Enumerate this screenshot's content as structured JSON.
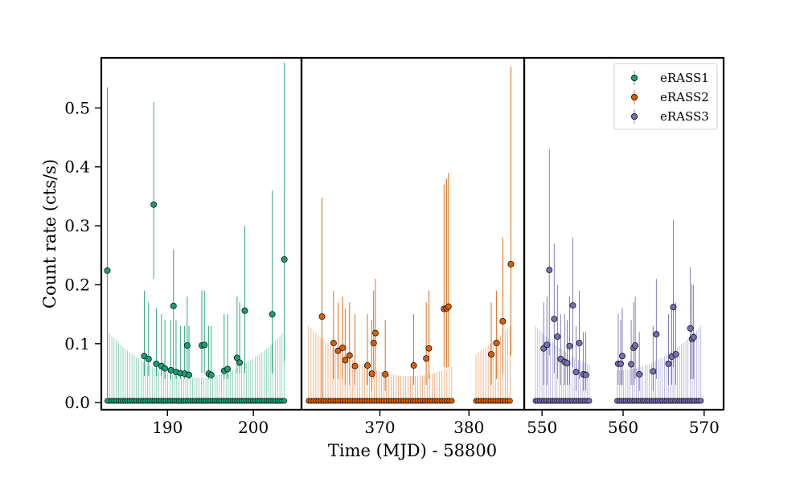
{
  "chart_data": {
    "type": "scatter",
    "ylabel": "Count rate (cts/s)",
    "xlabel": "Time (MJD) - 58800",
    "ylim": [
      -0.012,
      0.585
    ],
    "yticks": [
      "0.0",
      "0.1",
      "0.2",
      "0.3",
      "0.4",
      "0.5"
    ],
    "legend": {
      "placement": "top-right",
      "entries": [
        "eRASS1",
        "eRASS2",
        "eRASS3"
      ]
    },
    "panels": [
      {
        "name": "eRASS1",
        "color": "#1b9e77",
        "xlim": [
          182.3,
          205.6
        ],
        "xticks": [
          190,
          200
        ],
        "xtick_labels": [
          "190",
          "200"
        ],
        "points": [
          {
            "x": 183.0,
            "y": 0.224,
            "lo": 0.0,
            "hi": 0.535
          },
          {
            "x": 187.3,
            "y": 0.079,
            "lo": 0.045,
            "hi": 0.19
          },
          {
            "x": 187.8,
            "y": 0.074,
            "lo": 0.045,
            "hi": 0.17
          },
          {
            "x": 188.4,
            "y": 0.336,
            "lo": 0.21,
            "hi": 0.51
          },
          {
            "x": 188.7,
            "y": 0.066,
            "lo": 0.045,
            "hi": 0.16
          },
          {
            "x": 189.3,
            "y": 0.062,
            "lo": 0.045,
            "hi": 0.15
          },
          {
            "x": 189.7,
            "y": 0.058,
            "lo": 0.04,
            "hi": 0.14
          },
          {
            "x": 190.4,
            "y": 0.055,
            "lo": 0.04,
            "hi": 0.14
          },
          {
            "x": 190.7,
            "y": 0.164,
            "lo": 0.05,
            "hi": 0.26
          },
          {
            "x": 191.0,
            "y": 0.052,
            "lo": 0.04,
            "hi": 0.14
          },
          {
            "x": 191.5,
            "y": 0.05,
            "lo": 0.04,
            "hi": 0.13
          },
          {
            "x": 192.0,
            "y": 0.049,
            "lo": 0.04,
            "hi": 0.13
          },
          {
            "x": 192.3,
            "y": 0.097,
            "lo": 0.05,
            "hi": 0.18
          },
          {
            "x": 192.5,
            "y": 0.047,
            "lo": 0.04,
            "hi": 0.13
          },
          {
            "x": 194.0,
            "y": 0.097,
            "lo": 0.05,
            "hi": 0.19
          },
          {
            "x": 194.3,
            "y": 0.098,
            "lo": 0.05,
            "hi": 0.19
          },
          {
            "x": 194.8,
            "y": 0.049,
            "lo": 0.04,
            "hi": 0.13
          },
          {
            "x": 195.1,
            "y": 0.047,
            "lo": 0.04,
            "hi": 0.13
          },
          {
            "x": 196.6,
            "y": 0.054,
            "lo": 0.04,
            "hi": 0.15
          },
          {
            "x": 197.0,
            "y": 0.057,
            "lo": 0.04,
            "hi": 0.15
          },
          {
            "x": 198.1,
            "y": 0.076,
            "lo": 0.05,
            "hi": 0.18
          },
          {
            "x": 198.4,
            "y": 0.068,
            "lo": 0.05,
            "hi": 0.17
          },
          {
            "x": 199.0,
            "y": 0.156,
            "lo": 0.05,
            "hi": 0.3
          },
          {
            "x": 202.2,
            "y": 0.15,
            "lo": 0.05,
            "hi": 0.36
          },
          {
            "x": 203.6,
            "y": 0.243,
            "lo": 0.07,
            "hi": 0.577
          }
        ],
        "zero_points": {
          "x_start": 183.0,
          "x_end": 203.6,
          "count": 80,
          "gaps": []
        },
        "noise_envelope": {
          "edge": 0.12,
          "center": 0.042
        }
      },
      {
        "name": "eRASS2",
        "color": "#d95f02",
        "xlim": [
          361.2,
          386.2
        ],
        "xticks": [
          370,
          380
        ],
        "xtick_labels": [
          "370",
          "380"
        ],
        "points": [
          {
            "x": 363.5,
            "y": 0.146,
            "lo": 0.0,
            "hi": 0.348
          },
          {
            "x": 364.8,
            "y": 0.101,
            "lo": 0.04,
            "hi": 0.19
          },
          {
            "x": 365.3,
            "y": 0.088,
            "lo": 0.04,
            "hi": 0.17
          },
          {
            "x": 365.8,
            "y": 0.093,
            "lo": 0.04,
            "hi": 0.18
          },
          {
            "x": 366.1,
            "y": 0.072,
            "lo": 0.03,
            "hi": 0.16
          },
          {
            "x": 366.6,
            "y": 0.08,
            "lo": 0.03,
            "hi": 0.17
          },
          {
            "x": 367.2,
            "y": 0.062,
            "lo": 0.03,
            "hi": 0.15
          },
          {
            "x": 368.6,
            "y": 0.063,
            "lo": 0.03,
            "hi": 0.15
          },
          {
            "x": 369.1,
            "y": 0.049,
            "lo": 0.02,
            "hi": 0.14
          },
          {
            "x": 369.3,
            "y": 0.101,
            "lo": 0.04,
            "hi": 0.19
          },
          {
            "x": 369.5,
            "y": 0.118,
            "lo": 0.05,
            "hi": 0.21
          },
          {
            "x": 370.6,
            "y": 0.048,
            "lo": 0.02,
            "hi": 0.14
          },
          {
            "x": 373.8,
            "y": 0.063,
            "lo": 0.03,
            "hi": 0.15
          },
          {
            "x": 375.2,
            "y": 0.075,
            "lo": 0.03,
            "hi": 0.17
          },
          {
            "x": 375.5,
            "y": 0.092,
            "lo": 0.04,
            "hi": 0.19
          },
          {
            "x": 377.2,
            "y": 0.159,
            "lo": 0.06,
            "hi": 0.37
          },
          {
            "x": 377.5,
            "y": 0.16,
            "lo": 0.06,
            "hi": 0.38
          },
          {
            "x": 377.7,
            "y": 0.163,
            "lo": 0.06,
            "hi": 0.39
          },
          {
            "x": 382.5,
            "y": 0.082,
            "lo": 0.03,
            "hi": 0.17
          },
          {
            "x": 383.1,
            "y": 0.101,
            "lo": 0.04,
            "hi": 0.19
          },
          {
            "x": 383.8,
            "y": 0.138,
            "lo": 0.05,
            "hi": 0.28
          },
          {
            "x": 384.7,
            "y": 0.235,
            "lo": 0.08,
            "hi": 0.57
          }
        ],
        "zero_points": {
          "x_start": 362.0,
          "x_end": 384.6,
          "count": 84,
          "gaps": [
            [
              378.3,
              380.7
            ]
          ]
        },
        "noise_envelope": {
          "edge": 0.13,
          "center": 0.045
        }
      },
      {
        "name": "eRASS3",
        "color": "#7570b3",
        "xlim": [
          547.8,
          572.4
        ],
        "xticks": [
          550,
          560,
          570
        ],
        "xtick_labels": [
          "550",
          "560",
          "570"
        ],
        "points": [
          {
            "x": 550.2,
            "y": 0.092,
            "lo": 0.03,
            "hi": 0.17
          },
          {
            "x": 550.6,
            "y": 0.098,
            "lo": 0.03,
            "hi": 0.18
          },
          {
            "x": 550.9,
            "y": 0.225,
            "lo": 0.08,
            "hi": 0.43
          },
          {
            "x": 551.5,
            "y": 0.142,
            "lo": 0.05,
            "hi": 0.27
          },
          {
            "x": 551.9,
            "y": 0.112,
            "lo": 0.04,
            "hi": 0.2
          },
          {
            "x": 552.3,
            "y": 0.074,
            "lo": 0.03,
            "hi": 0.15
          },
          {
            "x": 552.8,
            "y": 0.069,
            "lo": 0.03,
            "hi": 0.15
          },
          {
            "x": 553.1,
            "y": 0.067,
            "lo": 0.03,
            "hi": 0.14
          },
          {
            "x": 553.4,
            "y": 0.096,
            "lo": 0.03,
            "hi": 0.18
          },
          {
            "x": 553.8,
            "y": 0.165,
            "lo": 0.06,
            "hi": 0.28
          },
          {
            "x": 554.2,
            "y": 0.052,
            "lo": 0.02,
            "hi": 0.13
          },
          {
            "x": 554.6,
            "y": 0.101,
            "lo": 0.04,
            "hi": 0.19
          },
          {
            "x": 555.1,
            "y": 0.048,
            "lo": 0.02,
            "hi": 0.12
          },
          {
            "x": 555.4,
            "y": 0.047,
            "lo": 0.02,
            "hi": 0.12
          },
          {
            "x": 559.4,
            "y": 0.066,
            "lo": 0.03,
            "hi": 0.15
          },
          {
            "x": 559.7,
            "y": 0.066,
            "lo": 0.03,
            "hi": 0.14
          },
          {
            "x": 559.9,
            "y": 0.079,
            "lo": 0.03,
            "hi": 0.16
          },
          {
            "x": 561.0,
            "y": 0.065,
            "lo": 0.03,
            "hi": 0.14
          },
          {
            "x": 561.3,
            "y": 0.093,
            "lo": 0.03,
            "hi": 0.17
          },
          {
            "x": 561.5,
            "y": 0.097,
            "lo": 0.04,
            "hi": 0.18
          },
          {
            "x": 562.0,
            "y": 0.048,
            "lo": 0.02,
            "hi": 0.12
          },
          {
            "x": 563.7,
            "y": 0.053,
            "lo": 0.02,
            "hi": 0.13
          },
          {
            "x": 564.1,
            "y": 0.116,
            "lo": 0.04,
            "hi": 0.21
          },
          {
            "x": 565.6,
            "y": 0.066,
            "lo": 0.03,
            "hi": 0.15
          },
          {
            "x": 566.0,
            "y": 0.078,
            "lo": 0.03,
            "hi": 0.16
          },
          {
            "x": 566.2,
            "y": 0.162,
            "lo": 0.06,
            "hi": 0.31
          },
          {
            "x": 566.5,
            "y": 0.082,
            "lo": 0.03,
            "hi": 0.17
          },
          {
            "x": 568.3,
            "y": 0.126,
            "lo": 0.04,
            "hi": 0.23
          },
          {
            "x": 568.5,
            "y": 0.108,
            "lo": 0.04,
            "hi": 0.2
          },
          {
            "x": 568.7,
            "y": 0.111,
            "lo": 0.04,
            "hi": 0.2
          }
        ],
        "zero_points": {
          "x_start": 549.2,
          "x_end": 569.6,
          "count": 78,
          "gaps": [
            [
              555.9,
              559.1
            ]
          ]
        },
        "noise_envelope": {
          "edge": 0.13,
          "center": 0.055
        }
      }
    ]
  }
}
